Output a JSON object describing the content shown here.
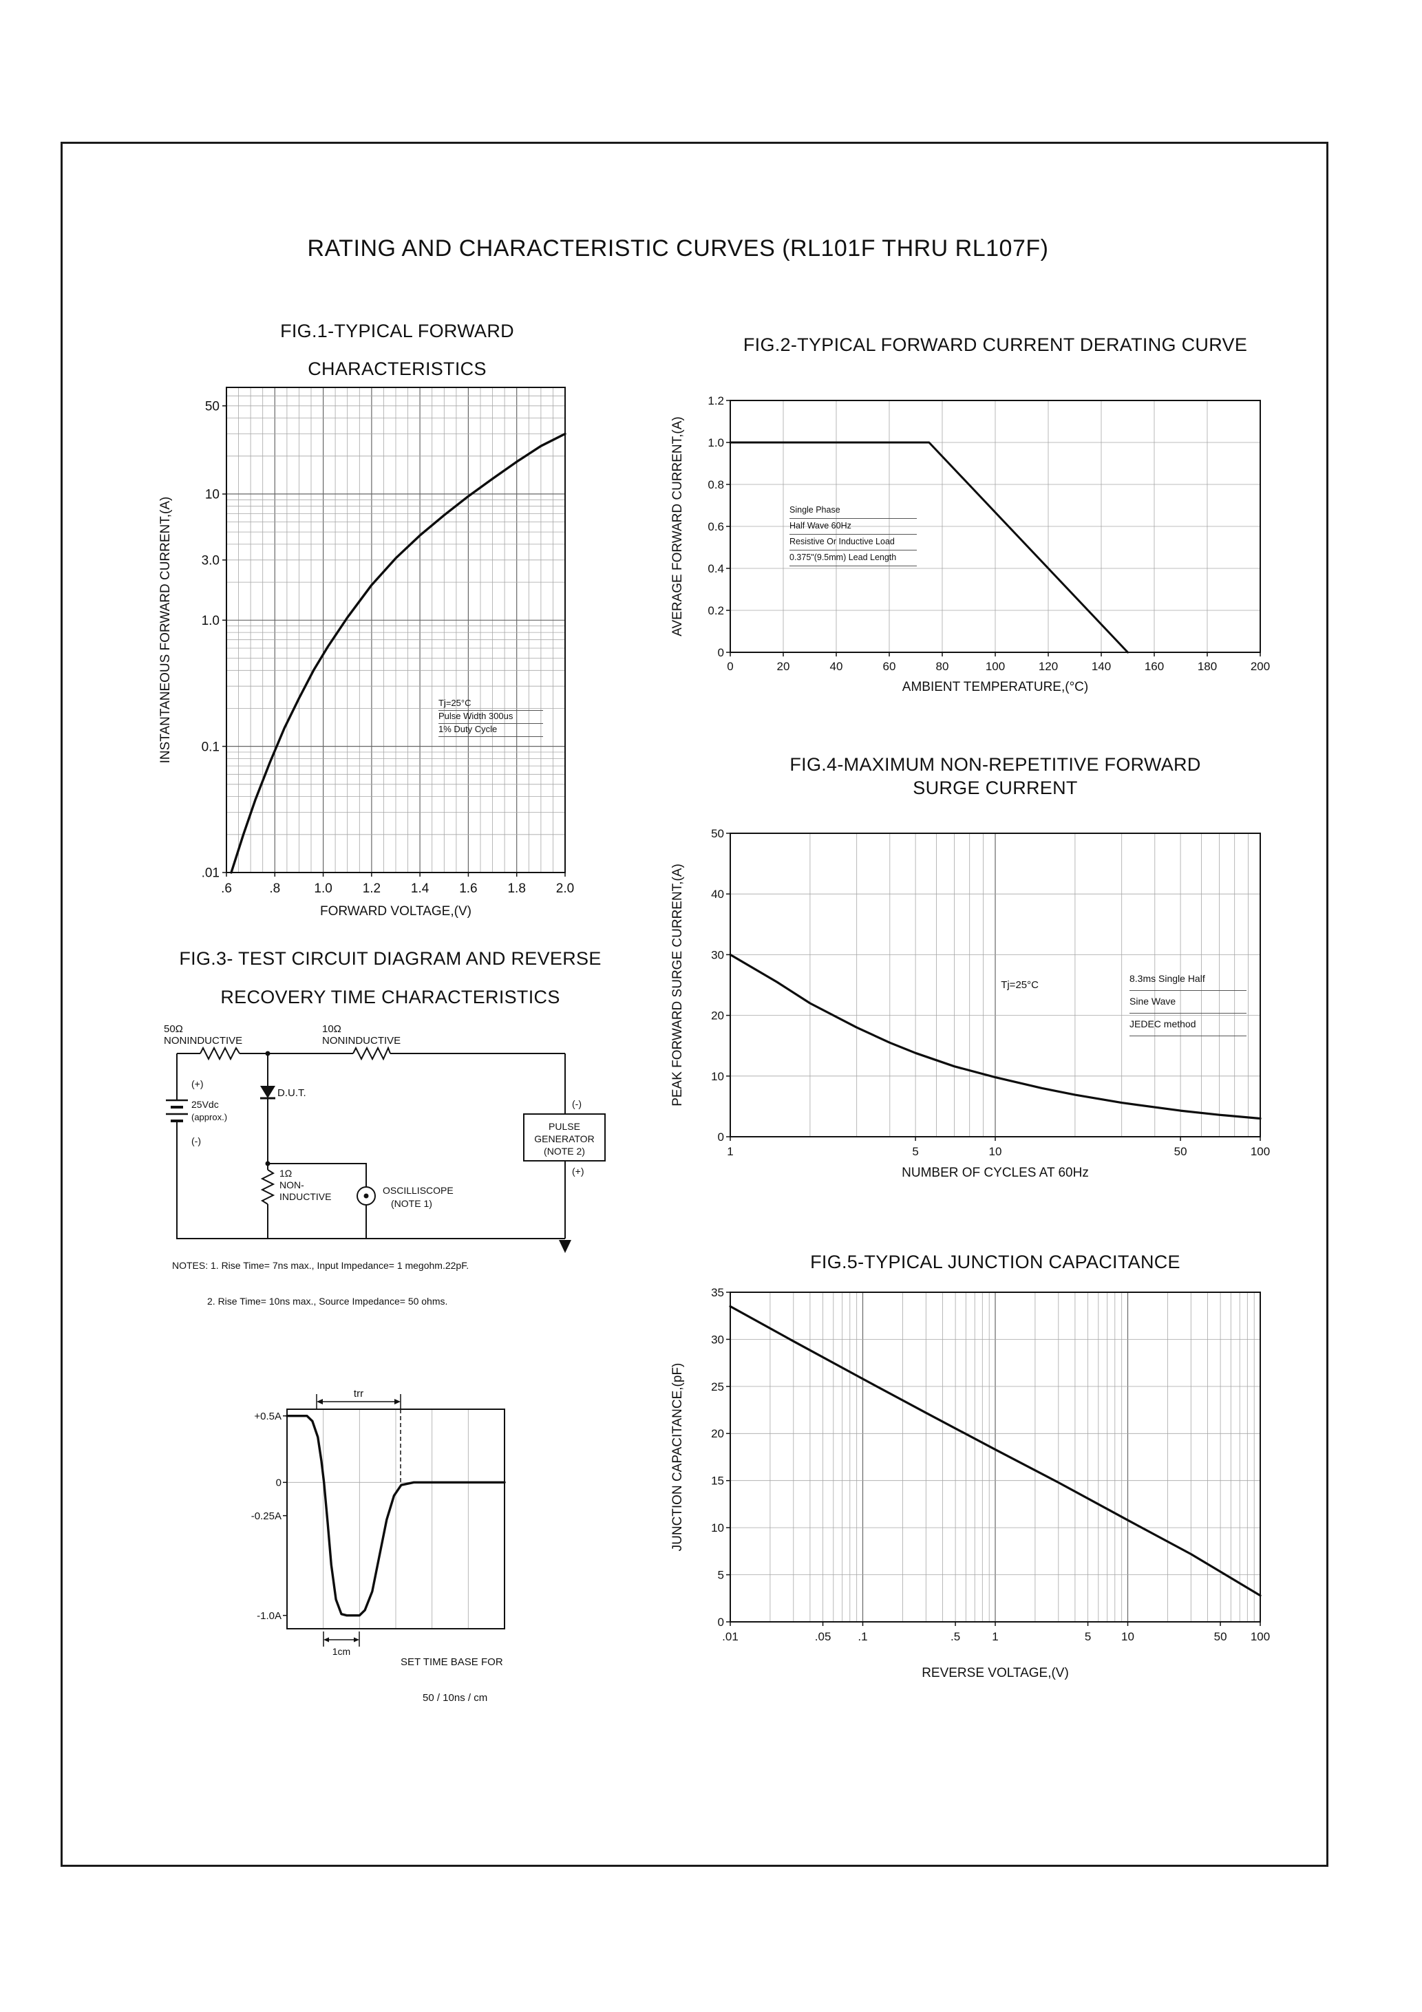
{
  "page": {
    "title": "RATING AND CHARACTERISTIC CURVES (RL101F THRU RL107F)",
    "colors": {
      "ink": "#111111",
      "paper": "#ffffff"
    }
  },
  "fig3": {
    "title_lines": [
      "FIG.3- TEST CIRCUIT DIAGRAM AND REVERSE",
      "RECOVERY TIME CHARACTERISTICS"
    ],
    "circuit": {
      "r1_value": "50Ω",
      "r1_type": "NONINDUCTIVE",
      "r2_value": "10Ω",
      "r2_type": "NONINDUCTIVE",
      "battery_plus": "(+)",
      "battery_value": "25Vdc",
      "battery_approx": "(approx.)",
      "battery_minus": "(-)",
      "dut_label": "D.U.T.",
      "r3_value": "1Ω",
      "r3_line2": "NON-",
      "r3_line3": "INDUCTIVE",
      "scope_line1": "OSCILLISCOPE",
      "scope_line2": "(NOTE 1)",
      "pulse_line1": "PULSE",
      "pulse_line2": "GENERATOR",
      "pulse_line3": "(NOTE 2)",
      "pulse_minus": "(-)",
      "pulse_plus": "(+)"
    },
    "notes": [
      "NOTES: 1. Rise Time= 7ns max., Input Impedance= 1 megohm.22pF.",
      "2. Rise Time= 10ns max., Source Impedance= 50 ohms."
    ],
    "waveform_labels": {
      "trr": "trr",
      "cm": "1cm",
      "caption1": "SET TIME BASE FOR",
      "caption2": "50 / 10ns / cm"
    }
  },
  "chart_data": [
    {
      "id": "fig1",
      "type": "line",
      "title_lines": [
        "FIG.1-TYPICAL FORWARD",
        "CHARACTERISTICS"
      ],
      "xlabel": "FORWARD VOLTAGE,(V)",
      "ylabel": "INSTANTANEOUS FORWARD CURRENT,(A)",
      "x_scale": "linear",
      "x_range": [
        0.6,
        2.0
      ],
      "x_grid": {
        "minor": 0.05,
        "major": 0.2
      },
      "x_ticks": [
        [
          0.6,
          ".6"
        ],
        [
          0.8,
          ".8"
        ],
        [
          1.0,
          "1.0"
        ],
        [
          1.2,
          "1.2"
        ],
        [
          1.4,
          "1.4"
        ],
        [
          1.6,
          "1.6"
        ],
        [
          1.8,
          "1.8"
        ],
        [
          2.0,
          "2.0"
        ]
      ],
      "y_scale": "log",
      "y_range": [
        0.01,
        70
      ],
      "y_ticks": [
        [
          50,
          "50"
        ],
        [
          10,
          "10"
        ],
        [
          3,
          "3.0"
        ],
        [
          1,
          "1.0"
        ],
        [
          0.1,
          "0.1"
        ],
        [
          0.01,
          ".01"
        ]
      ],
      "conditions": [
        "Tj=25°C",
        "Pulse Width 300us",
        "1% Duty Cycle"
      ],
      "series": [
        {
          "name": "typical forward current",
          "points": [
            [
              0.62,
              0.01
            ],
            [
              0.67,
              0.02
            ],
            [
              0.72,
              0.038
            ],
            [
              0.78,
              0.075
            ],
            [
              0.84,
              0.14
            ],
            [
              0.9,
              0.24
            ],
            [
              0.96,
              0.4
            ],
            [
              1.02,
              0.62
            ],
            [
              1.1,
              1.05
            ],
            [
              1.2,
              1.9
            ],
            [
              1.3,
              3.1
            ],
            [
              1.4,
              4.7
            ],
            [
              1.5,
              6.8
            ],
            [
              1.6,
              9.6
            ],
            [
              1.7,
              13.2
            ],
            [
              1.8,
              18
            ],
            [
              1.9,
              24
            ],
            [
              2.0,
              30
            ]
          ]
        }
      ]
    },
    {
      "id": "fig2",
      "type": "line",
      "title_lines": [
        "FIG.2-TYPICAL FORWARD CURRENT DERATING CURVE"
      ],
      "xlabel": "AMBIENT TEMPERATURE,(°C)",
      "ylabel": "AVERAGE FORWARD CURRENT,(A)",
      "x_scale": "linear",
      "x_range": [
        0,
        200
      ],
      "x_grid": {
        "minor": 20
      },
      "x_ticks": [
        [
          0,
          "0"
        ],
        [
          20,
          "20"
        ],
        [
          40,
          "40"
        ],
        [
          60,
          "60"
        ],
        [
          80,
          "80"
        ],
        [
          100,
          "100"
        ],
        [
          120,
          "120"
        ],
        [
          140,
          "140"
        ],
        [
          160,
          "160"
        ],
        [
          180,
          "180"
        ],
        [
          200,
          "200"
        ]
      ],
      "y_scale": "linear",
      "y_range": [
        0,
        1.2
      ],
      "y_grid": {
        "minor": 0.2
      },
      "y_ticks": [
        [
          0,
          "0"
        ],
        [
          0.2,
          "0.2"
        ],
        [
          0.4,
          "0.4"
        ],
        [
          0.6,
          "0.6"
        ],
        [
          0.8,
          "0.8"
        ],
        [
          1.0,
          "1.0"
        ],
        [
          1.2,
          "1.2"
        ]
      ],
      "conditions": [
        "Single Phase",
        "Half Wave 60Hz",
        "Resistive Or Inductive Load",
        "0.375\"(9.5mm) Lead Length"
      ],
      "series": [
        {
          "name": "derating curve",
          "points": [
            [
              0,
              1.0
            ],
            [
              75,
              1.0
            ],
            [
              150,
              0
            ]
          ]
        }
      ]
    },
    {
      "id": "fig4",
      "type": "line",
      "title_lines": [
        "FIG.4-MAXIMUM NON-REPETITIVE FORWARD",
        "SURGE CURRENT"
      ],
      "xlabel": "NUMBER OF CYCLES AT 60Hz",
      "ylabel": "PEAK FORWARD SURGE CURRENT,(A)",
      "x_scale": "log",
      "x_range": [
        1,
        100
      ],
      "x_ticks": [
        [
          1,
          "1"
        ],
        [
          5,
          "5"
        ],
        [
          10,
          "10"
        ],
        [
          50,
          "50"
        ],
        [
          100,
          "100"
        ]
      ],
      "y_scale": "linear",
      "y_range": [
        0,
        50
      ],
      "y_grid": {
        "minor": 10
      },
      "y_ticks": [
        [
          0,
          "0"
        ],
        [
          10,
          "10"
        ],
        [
          20,
          "20"
        ],
        [
          30,
          "30"
        ],
        [
          40,
          "40"
        ],
        [
          50,
          "50"
        ]
      ],
      "annotations": [
        {
          "text": "Tj=25°C",
          "x": 10.5,
          "y": 24.5
        }
      ],
      "conditions": [
        "8.3ms Single Half",
        "Sine Wave",
        "JEDEC method"
      ],
      "series": [
        {
          "name": "peak surge current",
          "points": [
            [
              1,
              30
            ],
            [
              1.5,
              25.5
            ],
            [
              2,
              22
            ],
            [
              3,
              18
            ],
            [
              4,
              15.5
            ],
            [
              5,
              13.8
            ],
            [
              7,
              11.6
            ],
            [
              10,
              9.8
            ],
            [
              15,
              8
            ],
            [
              20,
              6.9
            ],
            [
              30,
              5.6
            ],
            [
              50,
              4.3
            ],
            [
              70,
              3.6
            ],
            [
              100,
              3
            ]
          ]
        }
      ]
    },
    {
      "id": "fig5",
      "type": "line",
      "title_lines": [
        "FIG.5-TYPICAL JUNCTION CAPACITANCE"
      ],
      "xlabel": "REVERSE VOLTAGE,(V)",
      "ylabel": "JUNCTION CAPACITANCE,(pF)",
      "x_scale": "log",
      "x_range": [
        0.01,
        100
      ],
      "x_ticks": [
        [
          0.01,
          ".01"
        ],
        [
          0.05,
          ".05"
        ],
        [
          0.1,
          ".1"
        ],
        [
          0.5,
          ".5"
        ],
        [
          1,
          "1"
        ],
        [
          5,
          "5"
        ],
        [
          10,
          "10"
        ],
        [
          50,
          "50"
        ],
        [
          100,
          "100"
        ]
      ],
      "y_scale": "linear",
      "y_range": [
        0,
        35
      ],
      "y_grid": {
        "minor": 5
      },
      "y_ticks": [
        [
          0,
          "0"
        ],
        [
          5,
          "5"
        ],
        [
          10,
          "10"
        ],
        [
          15,
          "15"
        ],
        [
          20,
          "20"
        ],
        [
          25,
          "25"
        ],
        [
          30,
          "30"
        ],
        [
          35,
          "35"
        ]
      ],
      "series": [
        {
          "name": "junction capacitance",
          "points": [
            [
              0.01,
              33.5
            ],
            [
              0.03,
              29.8
            ],
            [
              0.1,
              25.8
            ],
            [
              0.3,
              22.2
            ],
            [
              1,
              18.3
            ],
            [
              3,
              14.8
            ],
            [
              10,
              10.8
            ],
            [
              30,
              7.2
            ],
            [
              100,
              2.8
            ]
          ]
        }
      ]
    },
    {
      "id": "figwf",
      "type": "line",
      "title_lines": [],
      "xlabel": "",
      "ylabel": "",
      "x_scale": "linear",
      "x_range": [
        0,
        6
      ],
      "x_grid": {
        "minor": 1
      },
      "x_ticks": [],
      "y_scale": "linear",
      "y_range": [
        -1.1,
        0.55
      ],
      "y_grid": {
        "lines": [
          0
        ]
      },
      "y_ticks": [
        [
          0.5,
          "+0.5A"
        ],
        [
          0,
          "0"
        ],
        [
          -0.25,
          "-0.25A"
        ],
        [
          -1.0,
          "-1.0A"
        ]
      ],
      "series": [
        {
          "name": "reverse recovery current",
          "points": [
            [
              0,
              0.5
            ],
            [
              0.55,
              0.5
            ],
            [
              0.7,
              0.46
            ],
            [
              0.85,
              0.34
            ],
            [
              0.95,
              0.16
            ],
            [
              1.02,
              0.0
            ],
            [
              1.12,
              -0.3
            ],
            [
              1.22,
              -0.62
            ],
            [
              1.35,
              -0.88
            ],
            [
              1.5,
              -0.99
            ],
            [
              1.65,
              -1.0
            ],
            [
              2.0,
              -1.0
            ],
            [
              2.15,
              -0.96
            ],
            [
              2.35,
              -0.82
            ],
            [
              2.55,
              -0.55
            ],
            [
              2.75,
              -0.28
            ],
            [
              2.95,
              -0.1
            ],
            [
              3.15,
              -0.02
            ],
            [
              3.5,
              0
            ],
            [
              6,
              0
            ]
          ]
        }
      ]
    }
  ]
}
